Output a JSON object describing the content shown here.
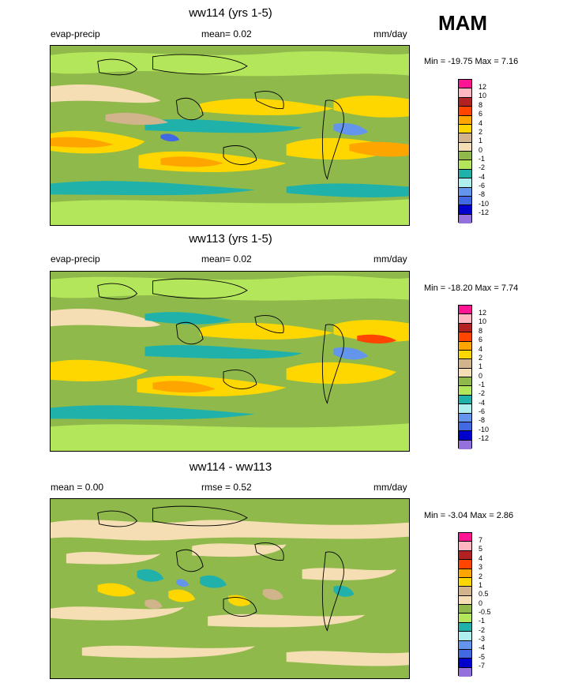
{
  "season": "MAM",
  "panels": [
    {
      "title": "ww114 (yrs 1-5)",
      "left_label": "evap-precip",
      "center_label": "mean=  0.02",
      "units": "mm/day",
      "minmax": "Min = -19.75 Max =   7.16",
      "colorbar_labels": [
        "12",
        "10",
        "8",
        "6",
        "4",
        "2",
        "1",
        "0",
        "-1",
        "-2",
        "-4",
        "-6",
        "-8",
        "-10",
        "-12"
      ]
    },
    {
      "title": "ww113 (yrs 1-5)",
      "left_label": "evap-precip",
      "center_label": "mean=  0.02",
      "units": "mm/day",
      "minmax": "Min = -18.20 Max =   7.74",
      "colorbar_labels": [
        "12",
        "10",
        "8",
        "6",
        "4",
        "2",
        "1",
        "0",
        "-1",
        "-2",
        "-4",
        "-6",
        "-8",
        "-10",
        "-12"
      ]
    },
    {
      "title": "ww114 - ww113",
      "left_label": "mean =   0.00",
      "center_label": "rmse =   0.52",
      "units": "mm/day",
      "minmax": "Min =  -3.04 Max =   2.86",
      "colorbar_labels": [
        "7",
        "5",
        "4",
        "3",
        "2",
        "1",
        "0.5",
        "0",
        "-0.5",
        "-1",
        "-2",
        "-3",
        "-4",
        "-5",
        "-7"
      ]
    }
  ],
  "colors": {
    "scale": [
      "#ff1493",
      "#ffb6c1",
      "#b22222",
      "#ff4500",
      "#ffa500",
      "#ffd700",
      "#d2b48c",
      "#f5deb3",
      "#8fb94b",
      "#b3e65a",
      "#20b2aa",
      "#afeeee",
      "#6495ed",
      "#4169e1",
      "#0000cd",
      "#9370db"
    ]
  }
}
